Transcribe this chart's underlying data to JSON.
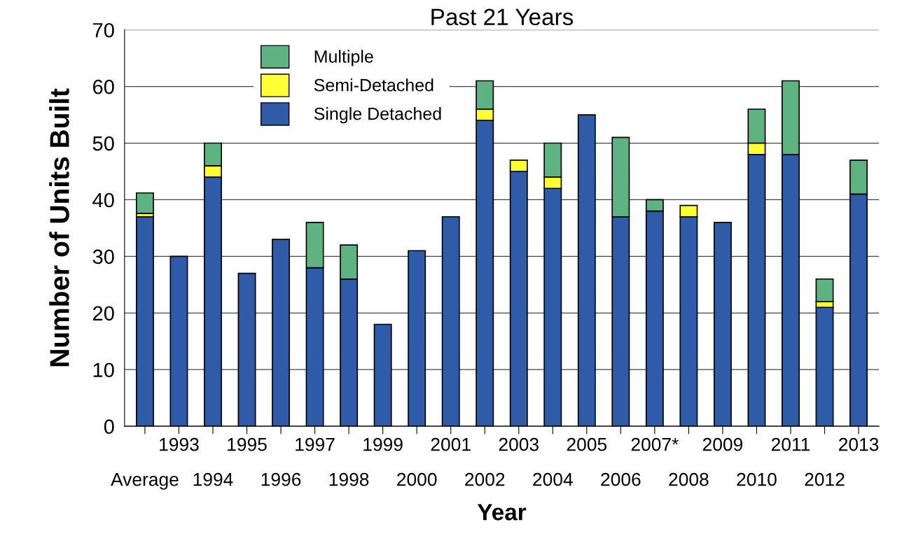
{
  "chart_data": {
    "type": "bar",
    "title": "Past 21 Years",
    "xlabel": "Year",
    "ylabel": "Number of Units Built",
    "categories": [
      "Average",
      "1993",
      "1994",
      "1995",
      "1996",
      "1997",
      "1998",
      "1999",
      "2000",
      "2001",
      "2002",
      "2003",
      "2004",
      "2005",
      "2006",
      "2007*",
      "2008",
      "2009",
      "2010",
      "2011",
      "2012",
      "2013"
    ],
    "stacked": true,
    "series": [
      {
        "name": "Single Detached",
        "color": "#2f5ba9",
        "values": [
          37,
          30,
          44,
          27,
          33,
          28,
          26,
          18,
          31,
          37,
          54,
          45,
          42,
          55,
          37,
          38,
          37,
          36,
          48,
          48,
          21,
          41
        ]
      },
      {
        "name": "Semi-Detached",
        "color": "#ffff33",
        "values": [
          0.6,
          0,
          2,
          0,
          0,
          0,
          0,
          0,
          0,
          0,
          2,
          2,
          2,
          0,
          0,
          0,
          2,
          0,
          2,
          0,
          1,
          0
        ]
      },
      {
        "name": "Multiple",
        "color": "#5fb383",
        "values": [
          3.6,
          0,
          4,
          0,
          0,
          8,
          6,
          0,
          0,
          0,
          5,
          0,
          6,
          0,
          14,
          2,
          0,
          0,
          6,
          13,
          4,
          6
        ]
      }
    ],
    "ylim": [
      0,
      70
    ],
    "yticks": [
      0,
      10,
      20,
      30,
      40,
      50,
      60,
      70
    ],
    "grid": "y",
    "legend": "top left"
  }
}
